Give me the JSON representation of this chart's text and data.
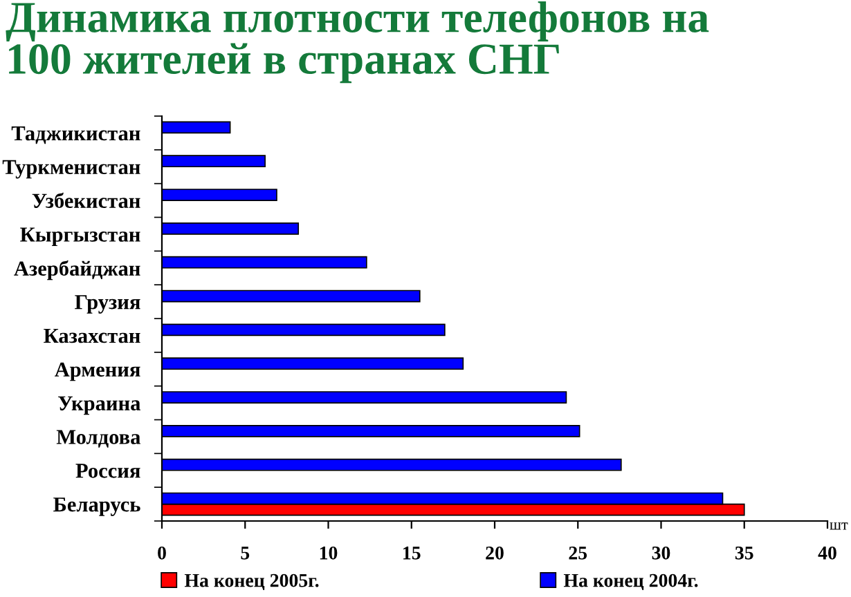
{
  "chart_data": {
    "type": "bar",
    "orientation": "horizontal",
    "title": "Динамика плотности телефонов на\n100 жителей в странах СНГ",
    "xlabel": "шт",
    "categories": [
      "Таджикистан",
      "Туркменистан",
      "Узбекистан",
      "Кыргызстан",
      "Азербайджан",
      "Грузия",
      "Казахстан",
      "Армения",
      "Украина",
      "Молдова",
      "Россия",
      "Беларусь"
    ],
    "series": [
      {
        "name": "На конец 2005г.",
        "color": "#ff0000",
        "values": [
          null,
          null,
          null,
          null,
          null,
          null,
          null,
          null,
          null,
          null,
          null,
          35.0
        ]
      },
      {
        "name": "На конец 2004г.",
        "color": "#0000ff",
        "values": [
          4.1,
          6.2,
          6.9,
          8.2,
          12.3,
          15.5,
          17.0,
          18.1,
          24.3,
          25.1,
          27.6,
          33.7
        ]
      }
    ],
    "xlim": [
      0,
      40
    ],
    "xticks": [
      0,
      5,
      10,
      15,
      20,
      25,
      30,
      35,
      40
    ],
    "legend": "bottom",
    "grid": false
  }
}
